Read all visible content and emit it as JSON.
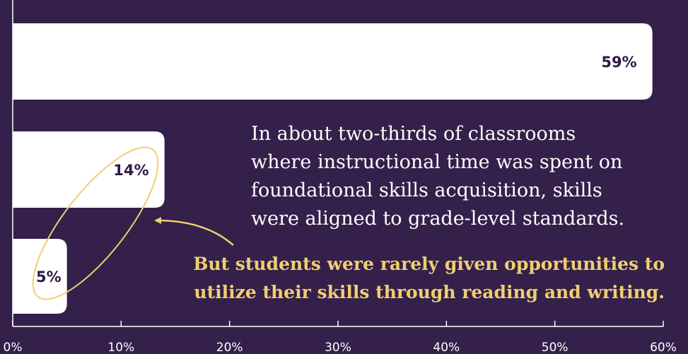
{
  "chart_data": {
    "type": "barh",
    "values": [
      59,
      14,
      5
    ],
    "value_labels": [
      "59%",
      "14%",
      "5%"
    ],
    "color": "#ffffff",
    "xlim": [
      0,
      60
    ],
    "xticks": [
      {
        "value": 0,
        "label": "0%"
      },
      {
        "value": 10,
        "label": "10%"
      },
      {
        "value": 20,
        "label": "20%"
      },
      {
        "value": 30,
        "label": "30%"
      },
      {
        "value": 40,
        "label": "40%"
      },
      {
        "value": 50,
        "label": "50%"
      },
      {
        "value": 60,
        "label": "60%"
      }
    ],
    "annotations": [
      {
        "lines": [
          "In about two-thirds of classrooms",
          "where instructional time was spent on",
          "foundational skills acquisition, skills",
          "were aligned to grade-level standards."
        ]
      },
      {
        "lines": [
          "But students were rarely given opportunities to",
          "utilize their skills through reading and writing."
        ]
      }
    ]
  }
}
